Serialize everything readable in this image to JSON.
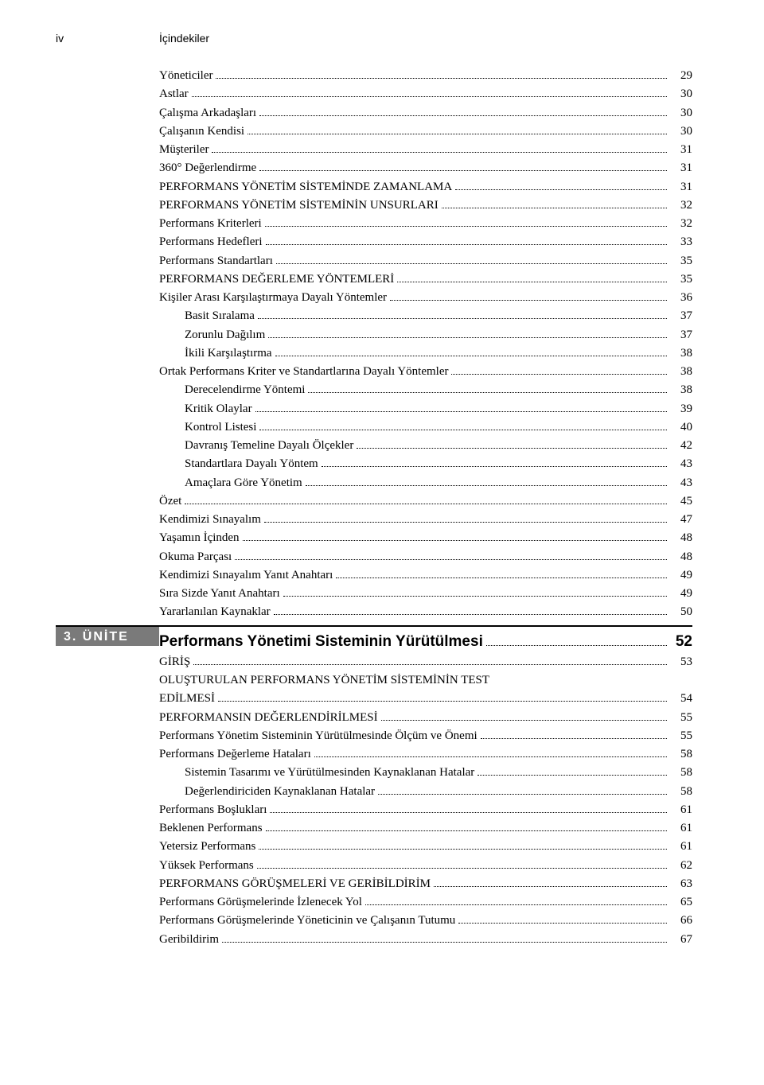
{
  "page_number": "iv",
  "header_title": "İçindekiler",
  "unit_badge": "3. ÜNİTE",
  "section_title": "Performans Yönetimi Sisteminin Yürütülmesi",
  "section_page": "52",
  "entries_top": [
    {
      "label": "Yöneticiler",
      "page": "29",
      "indent": 0
    },
    {
      "label": "Astlar",
      "page": "30",
      "indent": 0
    },
    {
      "label": "Çalışma Arkadaşları",
      "page": "30",
      "indent": 0
    },
    {
      "label": "Çalışanın Kendisi",
      "page": "30",
      "indent": 0
    },
    {
      "label": "Müşteriler",
      "page": "31",
      "indent": 0
    },
    {
      "label": "360° Değerlendirme",
      "page": "31",
      "indent": 0
    },
    {
      "label": "PERFORMANS YÖNETİM SİSTEMİNDE ZAMANLAMA",
      "page": "31",
      "indent": 0
    },
    {
      "label": "PERFORMANS YÖNETİM SİSTEMİNİN UNSURLARI",
      "page": "32",
      "indent": 0
    },
    {
      "label": "Performans Kriterleri",
      "page": "32",
      "indent": 0
    },
    {
      "label": "Performans Hedefleri",
      "page": "33",
      "indent": 0
    },
    {
      "label": "Performans Standartları",
      "page": "35",
      "indent": 0
    },
    {
      "label": "PERFORMANS DEĞERLEME YÖNTEMLERİ",
      "page": "35",
      "indent": 0
    },
    {
      "label": "Kişiler Arası Karşılaştırmaya Dayalı Yöntemler",
      "page": "36",
      "indent": 0
    },
    {
      "label": "Basit Sıralama",
      "page": "37",
      "indent": 1
    },
    {
      "label": "Zorunlu Dağılım",
      "page": "37",
      "indent": 1
    },
    {
      "label": "İkili Karşılaştırma",
      "page": "38",
      "indent": 1
    },
    {
      "label": "Ortak Performans Kriter ve Standartlarına Dayalı Yöntemler",
      "page": "38",
      "indent": 0
    },
    {
      "label": "Derecelendirme Yöntemi",
      "page": "38",
      "indent": 1
    },
    {
      "label": "Kritik Olaylar",
      "page": "39",
      "indent": 1
    },
    {
      "label": "Kontrol Listesi",
      "page": "40",
      "indent": 1
    },
    {
      "label": "Davranış Temeline Dayalı Ölçekler",
      "page": "42",
      "indent": 1
    },
    {
      "label": "Standartlara Dayalı Yöntem",
      "page": "43",
      "indent": 1
    },
    {
      "label": "Amaçlara Göre Yönetim",
      "page": "43",
      "indent": 1
    },
    {
      "label": "Özet",
      "page": "45",
      "indent": 0
    },
    {
      "label": "Kendimizi Sınayalım",
      "page": "47",
      "indent": 0
    },
    {
      "label": "Yaşamın İçinden",
      "page": "48",
      "indent": 0
    },
    {
      "label": "Okuma Parçası",
      "page": "48",
      "indent": 0
    },
    {
      "label": "Kendimizi Sınayalım Yanıt Anahtarı",
      "page": "49",
      "indent": 0
    },
    {
      "label": "Sıra Sizde Yanıt Anahtarı",
      "page": "49",
      "indent": 0
    },
    {
      "label": "Yararlanılan Kaynaklar",
      "page": "50",
      "indent": 0
    }
  ],
  "entries_unit": [
    {
      "label": "GİRİŞ",
      "page": "53",
      "indent": 0
    },
    {
      "label_multi": [
        "OLUŞTURULAN PERFORMANS YÖNETİM SİSTEMİNİN TEST",
        "EDİLMESİ"
      ],
      "page": "54",
      "indent": 0
    },
    {
      "label": "PERFORMANSIN DEĞERLENDİRİLMESİ",
      "page": "55",
      "indent": 0
    },
    {
      "label": "Performans Yönetim Sisteminin Yürütülmesinde Ölçüm ve Önemi",
      "page": "55",
      "indent": 0
    },
    {
      "label": "Performans Değerleme Hataları",
      "page": "58",
      "indent": 0
    },
    {
      "label": "Sistemin Tasarımı ve Yürütülmesinden Kaynaklanan Hatalar",
      "page": "58",
      "indent": 1
    },
    {
      "label": "Değerlendiriciden Kaynaklanan Hatalar",
      "page": "58",
      "indent": 1
    },
    {
      "label": "Performans Boşlukları",
      "page": "61",
      "indent": 0
    },
    {
      "label": "Beklenen Performans",
      "page": "61",
      "indent": 0
    },
    {
      "label": "Yetersiz Performans",
      "page": "61",
      "indent": 0
    },
    {
      "label": "Yüksek Performans",
      "page": "62",
      "indent": 0
    },
    {
      "label": "PERFORMANS GÖRÜŞMELERİ VE GERİBİLDİRİM",
      "page": "63",
      "indent": 0
    },
    {
      "label": "Performans Görüşmelerinde İzlenecek Yol",
      "page": "65",
      "indent": 0
    },
    {
      "label": "Performans Görüşmelerinde Yöneticinin ve Çalışanın Tutumu",
      "page": "66",
      "indent": 0
    },
    {
      "label": "Geribildirim",
      "page": "67",
      "indent": 0
    }
  ]
}
